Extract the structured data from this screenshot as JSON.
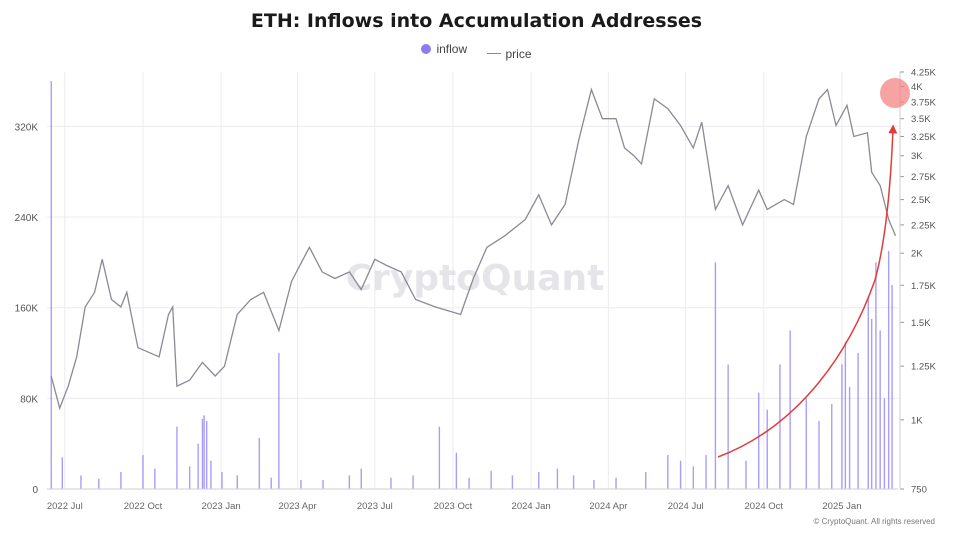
{
  "chart_data": {
    "type": "bar+line",
    "title": "ETH: Inflows into Accumulation Addresses",
    "legend": [
      "inflow",
      "price"
    ],
    "legend_placement": "top-center",
    "x_ticks": [
      "2022 Jul",
      "2022 Oct",
      "2023 Jan",
      "2023 Apr",
      "2023 Jul",
      "2023 Oct",
      "2024 Jan",
      "2024 Apr",
      "2024 Jul",
      "2024 Oct",
      "2025 Jan"
    ],
    "y_left": {
      "ticks": [
        "0",
        "80K",
        "160K",
        "240K",
        "320K"
      ],
      "range": [
        0,
        368000
      ]
    },
    "y_right": {
      "scale": "log",
      "ticks": [
        "750",
        "1K",
        "1.25K",
        "1.5K",
        "1.75K",
        "2K",
        "2.25K",
        "2.5K",
        "2.75K",
        "3K",
        "3.25K",
        "3.5K",
        "3.75K",
        "4K",
        "4.25K"
      ],
      "range": [
        750,
        4250
      ]
    },
    "series": [
      {
        "name": "price",
        "type": "line",
        "color": "#8a8a96",
        "points": [
          [
            "2022-06-15",
            1200
          ],
          [
            "2022-06-25",
            1050
          ],
          [
            "2022-07-05",
            1150
          ],
          [
            "2022-07-15",
            1300
          ],
          [
            "2022-07-25",
            1600
          ],
          [
            "2022-08-05",
            1700
          ],
          [
            "2022-08-14",
            1950
          ],
          [
            "2022-08-25",
            1650
          ],
          [
            "2022-09-05",
            1600
          ],
          [
            "2022-09-12",
            1700
          ],
          [
            "2022-09-25",
            1350
          ],
          [
            "2022-10-05",
            1330
          ],
          [
            "2022-10-20",
            1300
          ],
          [
            "2022-10-31",
            1550
          ],
          [
            "2022-11-05",
            1600
          ],
          [
            "2022-11-10",
            1150
          ],
          [
            "2022-11-25",
            1180
          ],
          [
            "2022-12-10",
            1270
          ],
          [
            "2022-12-25",
            1200
          ],
          [
            "2023-01-05",
            1250
          ],
          [
            "2023-01-20",
            1550
          ],
          [
            "2023-02-05",
            1650
          ],
          [
            "2023-02-20",
            1700
          ],
          [
            "2023-03-10",
            1450
          ],
          [
            "2023-03-25",
            1780
          ],
          [
            "2023-04-15",
            2050
          ],
          [
            "2023-04-30",
            1850
          ],
          [
            "2023-05-15",
            1800
          ],
          [
            "2023-06-01",
            1850
          ],
          [
            "2023-06-15",
            1720
          ],
          [
            "2023-07-01",
            1950
          ],
          [
            "2023-07-15",
            1900
          ],
          [
            "2023-08-01",
            1850
          ],
          [
            "2023-08-18",
            1650
          ],
          [
            "2023-09-10",
            1600
          ],
          [
            "2023-10-10",
            1550
          ],
          [
            "2023-10-25",
            1800
          ],
          [
            "2023-11-10",
            2050
          ],
          [
            "2023-12-01",
            2150
          ],
          [
            "2023-12-25",
            2300
          ],
          [
            "2024-01-10",
            2550
          ],
          [
            "2024-01-25",
            2250
          ],
          [
            "2024-02-10",
            2450
          ],
          [
            "2024-02-26",
            3200
          ],
          [
            "2024-03-12",
            3950
          ],
          [
            "2024-03-25",
            3500
          ],
          [
            "2024-04-10",
            3500
          ],
          [
            "2024-04-20",
            3100
          ],
          [
            "2024-05-01",
            3000
          ],
          [
            "2024-05-10",
            2900
          ],
          [
            "2024-05-25",
            3800
          ],
          [
            "2024-06-10",
            3650
          ],
          [
            "2024-06-25",
            3400
          ],
          [
            "2024-07-10",
            3100
          ],
          [
            "2024-07-20",
            3450
          ],
          [
            "2024-08-05",
            2400
          ],
          [
            "2024-08-20",
            2650
          ],
          [
            "2024-09-06",
            2250
          ],
          [
            "2024-09-25",
            2600
          ],
          [
            "2024-10-05",
            2400
          ],
          [
            "2024-10-25",
            2500
          ],
          [
            "2024-11-05",
            2450
          ],
          [
            "2024-11-20",
            3250
          ],
          [
            "2024-12-05",
            3800
          ],
          [
            "2024-12-15",
            3950
          ],
          [
            "2024-12-25",
            3400
          ],
          [
            "2025-01-07",
            3700
          ],
          [
            "2025-01-15",
            3250
          ],
          [
            "2025-01-31",
            3300
          ],
          [
            "2025-02-05",
            2800
          ],
          [
            "2025-02-15",
            2650
          ],
          [
            "2025-02-25",
            2300
          ],
          [
            "2025-03-05",
            2150
          ]
        ]
      },
      {
        "name": "inflow",
        "type": "bar",
        "color": "#8b7cf6",
        "points": [
          [
            "2022-06-15",
            360000
          ],
          [
            "2022-06-28",
            28000
          ],
          [
            "2022-07-20",
            12000
          ],
          [
            "2022-08-10",
            9000
          ],
          [
            "2022-09-05",
            15000
          ],
          [
            "2022-10-01",
            30000
          ],
          [
            "2022-10-15",
            18000
          ],
          [
            "2022-11-10",
            55000
          ],
          [
            "2022-11-25",
            20000
          ],
          [
            "2022-12-05",
            40000
          ],
          [
            "2022-12-10",
            62000
          ],
          [
            "2022-12-12",
            65000
          ],
          [
            "2022-12-15",
            60000
          ],
          [
            "2022-12-20",
            25000
          ],
          [
            "2023-01-02",
            15000
          ],
          [
            "2023-01-20",
            12000
          ],
          [
            "2023-02-15",
            45000
          ],
          [
            "2023-03-01",
            10000
          ],
          [
            "2023-03-10",
            120000
          ],
          [
            "2023-04-05",
            8000
          ],
          [
            "2023-05-01",
            8000
          ],
          [
            "2023-06-01",
            12000
          ],
          [
            "2023-06-15",
            18000
          ],
          [
            "2023-07-20",
            10000
          ],
          [
            "2023-08-15",
            12000
          ],
          [
            "2023-09-15",
            55000
          ],
          [
            "2023-10-05",
            32000
          ],
          [
            "2023-10-20",
            10000
          ],
          [
            "2023-11-15",
            16000
          ],
          [
            "2023-12-10",
            12000
          ],
          [
            "2024-01-10",
            15000
          ],
          [
            "2024-02-01",
            18000
          ],
          [
            "2024-02-20",
            12000
          ],
          [
            "2024-03-15",
            8000
          ],
          [
            "2024-04-10",
            10000
          ],
          [
            "2024-05-15",
            15000
          ],
          [
            "2024-06-10",
            30000
          ],
          [
            "2024-06-25",
            25000
          ],
          [
            "2024-07-10",
            20000
          ],
          [
            "2024-07-25",
            30000
          ],
          [
            "2024-08-05",
            200000
          ],
          [
            "2024-08-20",
            110000
          ],
          [
            "2024-09-10",
            25000
          ],
          [
            "2024-09-25",
            85000
          ],
          [
            "2024-10-05",
            70000
          ],
          [
            "2024-10-20",
            110000
          ],
          [
            "2024-11-01",
            140000
          ],
          [
            "2024-11-20",
            80000
          ],
          [
            "2024-12-05",
            60000
          ],
          [
            "2024-12-20",
            75000
          ],
          [
            "2025-01-01",
            110000
          ],
          [
            "2025-01-05",
            130000
          ],
          [
            "2025-01-10",
            90000
          ],
          [
            "2025-01-20",
            120000
          ],
          [
            "2025-02-01",
            170000
          ],
          [
            "2025-02-05",
            150000
          ],
          [
            "2025-02-10",
            200000
          ],
          [
            "2025-02-15",
            140000
          ],
          [
            "2025-02-20",
            80000
          ],
          [
            "2025-02-25",
            210000
          ],
          [
            "2025-03-01",
            180000
          ]
        ]
      }
    ],
    "watermark": "CryptoQuant",
    "annotations": [
      "red arrow rising toward latest price",
      "red circle at ~4K price level"
    ]
  },
  "copyright": "© CryptoQuant. All rights reserved"
}
